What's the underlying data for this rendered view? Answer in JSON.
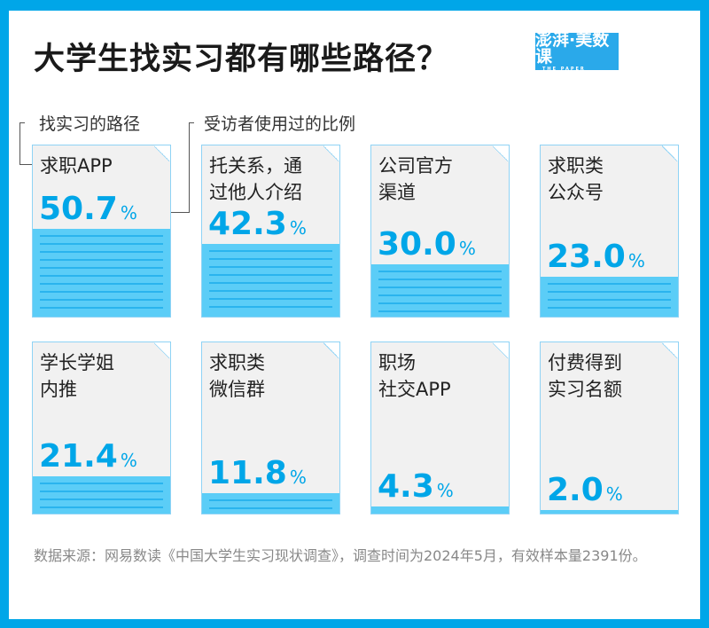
{
  "title": "大学生找实习都有哪些路径？",
  "logo": {
    "main": "澎湃·美数课",
    "sub": "THE PAPER"
  },
  "legend": {
    "path": "找实习的路径",
    "ratio": "受访者使用过的比例"
  },
  "chart_data": {
    "type": "bar",
    "title": "大学生找实习都有哪些路径？",
    "categories": [
      "求职APP",
      "托关系，通\n过他人介绍",
      "公司官方\n渠道",
      "求职类\n公众号",
      "学长学姐\n内推",
      "求职类\n微信群",
      "职场\n社交APP",
      "付费得到\n实习名额"
    ],
    "values": [
      50.7,
      42.3,
      30.0,
      23.0,
      21.4,
      11.8,
      4.3,
      2.0
    ],
    "value_labels": [
      "50.7",
      "42.3",
      "30.0",
      "23.0",
      "21.4",
      "11.8",
      "4.3",
      "2.0"
    ],
    "unit": "%",
    "ylim": [
      0,
      100
    ]
  },
  "footer": "数据来源：网易数读《中国大学生实习现状调查》，调查时间为2024年5月，有效样本量2391份。",
  "colors": {
    "accent": "#00a6e8",
    "fill": "#5bcdf7",
    "card": "#f1f1f1"
  }
}
